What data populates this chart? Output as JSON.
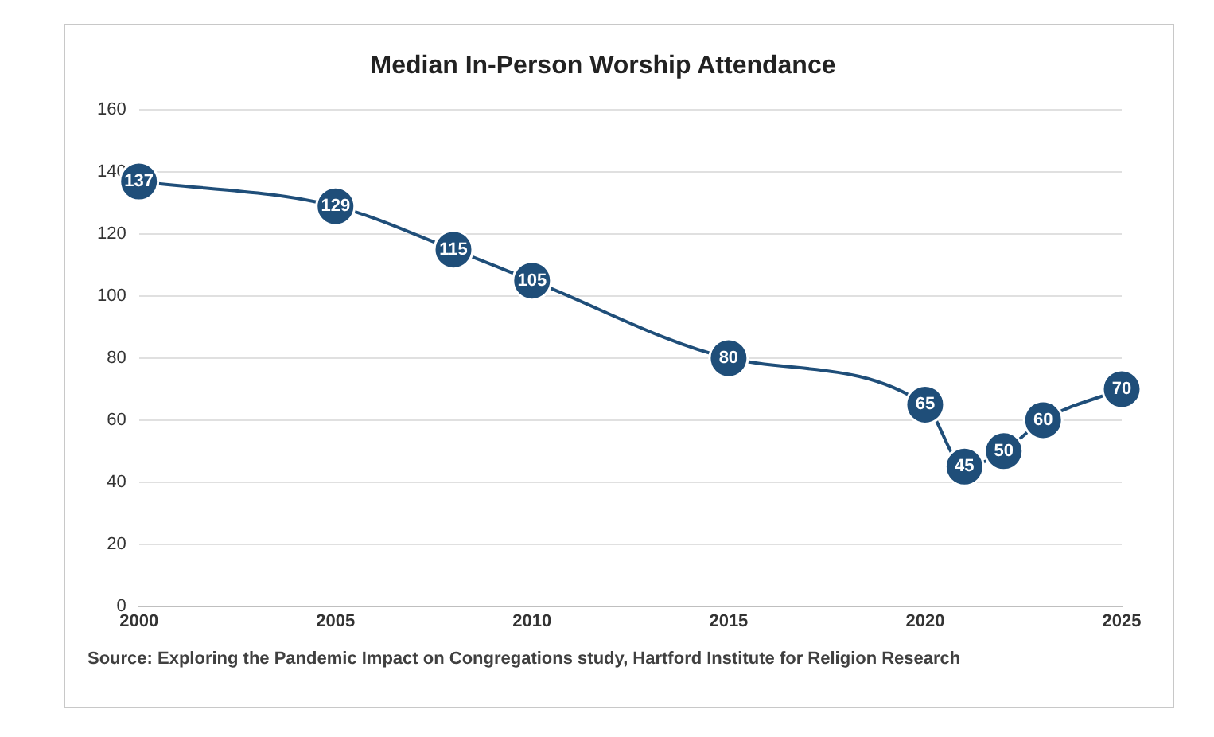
{
  "chart_data": {
    "type": "line",
    "title": "Median In-Person Worship Attendance",
    "x": [
      2000,
      2005,
      2008,
      2010,
      2015,
      2020,
      2021,
      2022,
      2023,
      2025
    ],
    "series": [
      {
        "color": "#1f4e79",
        "values": [
          137,
          129,
          115,
          105,
          80,
          65,
          45,
          50,
          60,
          70
        ]
      }
    ],
    "xlim": [
      2000,
      2025
    ],
    "xticks": [
      2000,
      2005,
      2010,
      2015,
      2020,
      2025
    ],
    "ylim": [
      0,
      160
    ],
    "yticks": [
      0,
      20,
      40,
      60,
      80,
      100,
      120,
      140,
      160
    ],
    "grid": "y",
    "marker": "circle",
    "data_labels": true,
    "legend": false,
    "annotations": [
      "Source: Exploring the Pandemic Impact on Congregations study, Hartford Institute for Religion Research"
    ]
  }
}
